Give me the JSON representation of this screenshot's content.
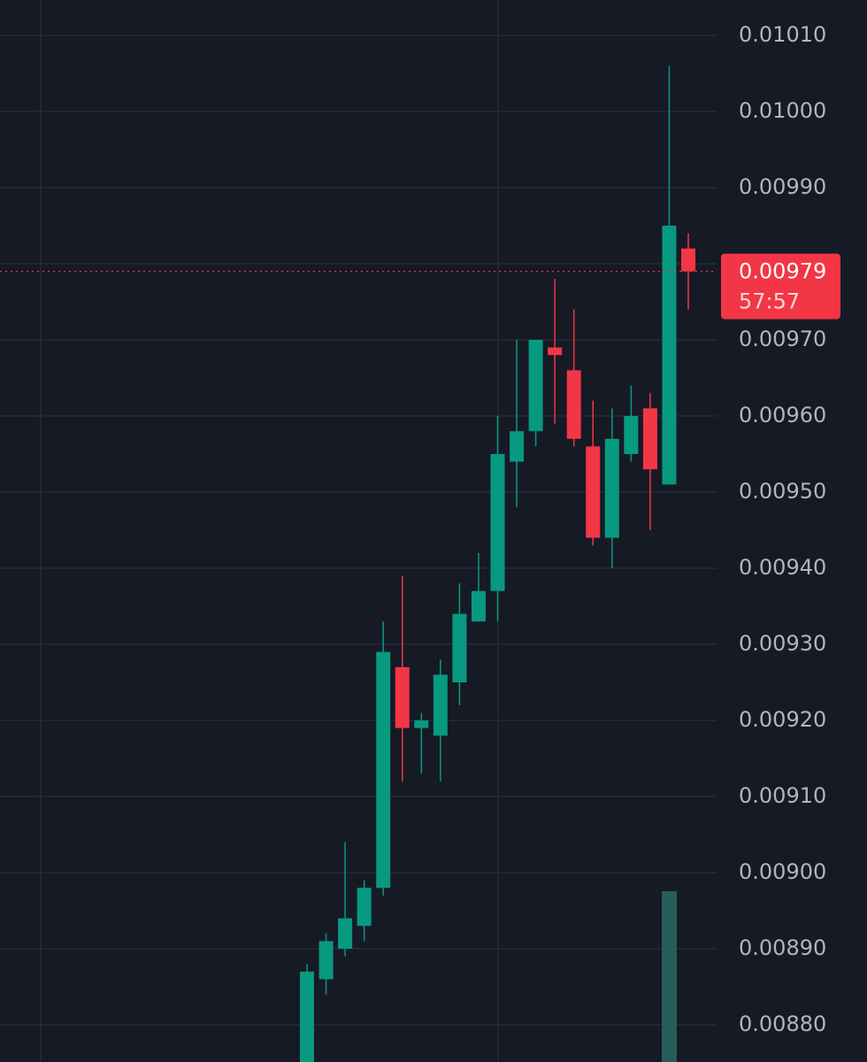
{
  "chart_data": {
    "type": "candlestick",
    "open": [
      0.00874,
      0.00886,
      0.0089,
      0.00893,
      0.00898,
      0.00927,
      0.00919,
      0.00918,
      0.00925,
      0.00933,
      0.00937,
      0.00954,
      0.00958,
      0.00969,
      0.00966,
      0.00956,
      0.00944,
      0.00955,
      0.00961,
      0.00951,
      0.00982
    ],
    "high": [
      0.00888,
      0.00892,
      0.00904,
      0.00899,
      0.00933,
      0.00939,
      0.00921,
      0.00928,
      0.00938,
      0.00942,
      0.0096,
      0.0097,
      0.0097,
      0.00978,
      0.00974,
      0.00962,
      0.00961,
      0.00964,
      0.00963,
      0.01006,
      0.00984
    ],
    "low": [
      0.008735,
      0.00884,
      0.00889,
      0.00891,
      0.00897,
      0.00912,
      0.00913,
      0.00912,
      0.00922,
      0.00933,
      0.00933,
      0.00948,
      0.00956,
      0.00959,
      0.00956,
      0.00943,
      0.0094,
      0.00954,
      0.00945,
      0.00951,
      0.00974
    ],
    "close": [
      0.00887,
      0.00891,
      0.00894,
      0.00898,
      0.00929,
      0.00919,
      0.0092,
      0.00926,
      0.00934,
      0.00937,
      0.00955,
      0.00958,
      0.0097,
      0.00968,
      0.00957,
      0.00944,
      0.00957,
      0.0096,
      0.00953,
      0.00985,
      0.00979
    ],
    "up_color": "#089981",
    "down_color": "#f23645",
    "ylim": [
      0.0087512,
      0.0101465
    ],
    "yticks": [
      {
        "value": 0.0101,
        "label": "0.01010"
      },
      {
        "value": 0.01,
        "label": "0.01000"
      },
      {
        "value": 0.0099,
        "label": "0.00990"
      },
      {
        "value": 0.0098,
        "label": "0.00980"
      },
      {
        "value": 0.0097,
        "label": "0.00970"
      },
      {
        "value": 0.0096,
        "label": "0.00960"
      },
      {
        "value": 0.0095,
        "label": "0.00950"
      },
      {
        "value": 0.0094,
        "label": "0.00940"
      },
      {
        "value": 0.0093,
        "label": "0.00930"
      },
      {
        "value": 0.0092,
        "label": "0.00920"
      },
      {
        "value": 0.0091,
        "label": "0.00910"
      },
      {
        "value": 0.009,
        "label": "0.00900"
      },
      {
        "value": 0.0089,
        "label": "0.00890"
      },
      {
        "value": 0.0088,
        "label": "0.00880"
      }
    ],
    "grid": true,
    "current_price": 0.00979,
    "countdown": "57:57"
  }
}
